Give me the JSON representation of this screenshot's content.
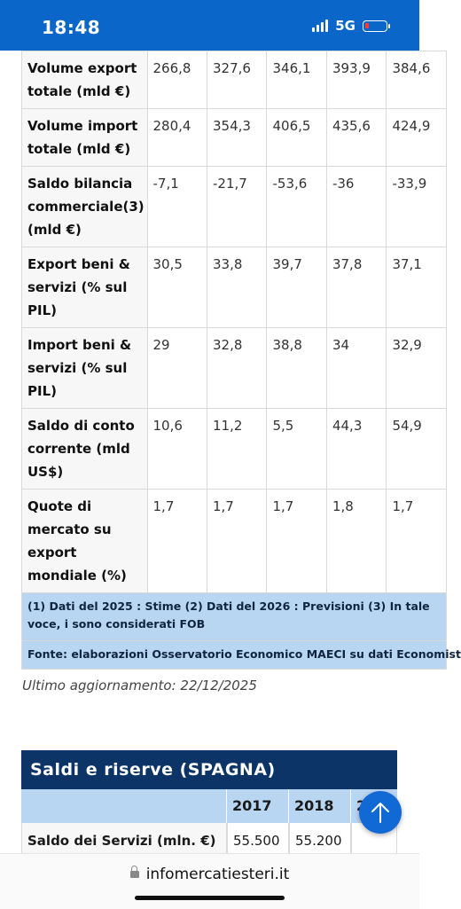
{
  "status": {
    "time": "18:48",
    "network": "5G"
  },
  "table": {
    "rows": [
      {
        "label": "Volume export totale (mld €)",
        "values": [
          "266,8",
          "327,6",
          "346,1",
          "393,9",
          "384,6"
        ]
      },
      {
        "label": "Volume import totale (mld €)",
        "values": [
          "280,4",
          "354,3",
          "406,5",
          "435,6",
          "424,9"
        ]
      },
      {
        "label": "Saldo bilancia commerciale(3) (mld €)",
        "values": [
          "-7,1",
          "-21,7",
          "-53,6",
          "-36",
          "-33,9"
        ]
      },
      {
        "label": "Export beni & servizi (% sul PIL)",
        "values": [
          "30,5",
          "33,8",
          "39,7",
          "37,8",
          "37,1"
        ]
      },
      {
        "label": "Import beni & servizi (% sul PIL)",
        "values": [
          "29",
          "32,8",
          "38,8",
          "34",
          "32,9"
        ]
      },
      {
        "label": "Saldo di conto corrente (mld US$)",
        "values": [
          "10,6",
          "11,2",
          "5,5",
          "44,3",
          "54,9"
        ]
      },
      {
        "label": "Quote di mercato su export mondiale (%)",
        "values": [
          "1,7",
          "1,7",
          "1,7",
          "1,8",
          "1,7"
        ]
      }
    ],
    "note": "(1) Dati del 2025 : Stime (2) Dati del 2026 : Previsioni (3) In tale voce, i sono considerati FOB",
    "source": "Fonte: elaborazioni Osservatorio Economico MAECI su dati Economist"
  },
  "updated": "Ultimo aggiornamento: 22/12/2025",
  "saldi": {
    "title": "Saldi e riserve (SPAGNA)",
    "years": [
      "2017",
      "2018",
      "2"
    ],
    "row_label": "Saldo dei Servizi (mln. €)",
    "row_values": [
      "55.500",
      "55.200",
      ""
    ]
  },
  "url": "infomercatiesteri.it",
  "colors": {
    "brand_blue": "#0a66c8",
    "dark_blue": "#0c3466",
    "light_blue": "#b8d5f2"
  }
}
